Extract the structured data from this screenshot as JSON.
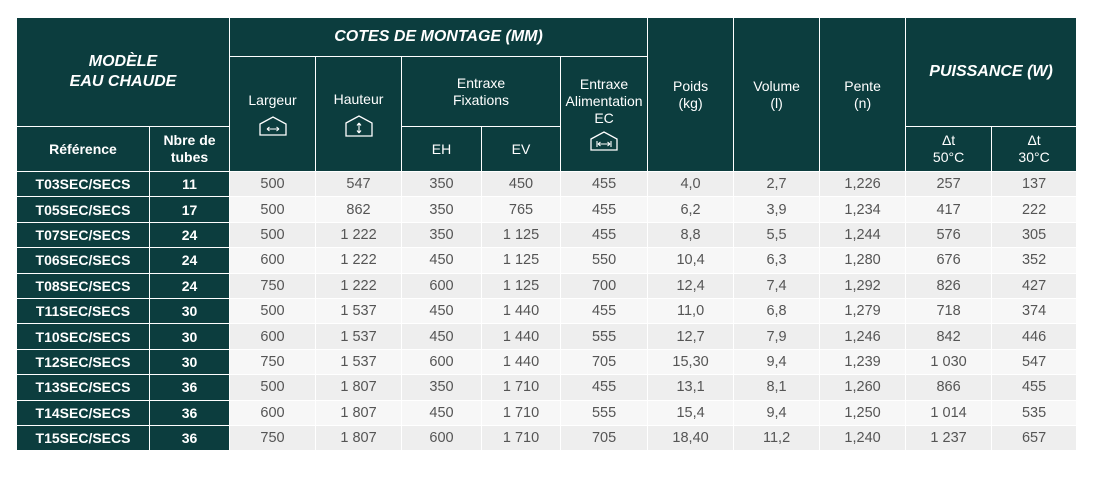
{
  "header": {
    "modele_line1": "MODÈLE",
    "modele_line2": "EAU CHAUDE",
    "cotes": "COTES DE MONTAGE (MM)",
    "largeur": "Largeur",
    "hauteur": "Hauteur",
    "entraxe_fix_line1": "Entraxe",
    "entraxe_fix_line2": "Fixations",
    "entraxe_alim_line1": "Entraxe",
    "entraxe_alim_line2": "Alimentation",
    "entraxe_alim_line3": "EC",
    "poids_line1": "Poids",
    "poids_line2": "(kg)",
    "volume_line1": "Volume",
    "volume_line2": "(l)",
    "pente_line1": "Pente",
    "pente_line2": "(n)",
    "puissance": "PUISSANCE (W)",
    "reference": "Référence",
    "tubes_line1": "Nbre de",
    "tubes_line2": "tubes",
    "eh": "EH",
    "ev": "EV",
    "dt50_line1": "Δt",
    "dt50_line2": "50°C",
    "dt30_line1": "Δt",
    "dt30_line2": "30°C"
  },
  "icons": {
    "largeur": "width-arrows-icon",
    "hauteur": "height-arrows-icon",
    "entraxe": "connection-distance-icon"
  },
  "rows": [
    {
      "ref": "T03SEC/SECS",
      "tubes": "11",
      "largeur": "500",
      "hauteur": "547",
      "eh": "350",
      "ev": "450",
      "ec": "455",
      "poids": "4,0",
      "volume": "2,7",
      "pente": "1,226",
      "p50": "257",
      "p30": "137"
    },
    {
      "ref": "T05SEC/SECS",
      "tubes": "17",
      "largeur": "500",
      "hauteur": "862",
      "eh": "350",
      "ev": "765",
      "ec": "455",
      "poids": "6,2",
      "volume": "3,9",
      "pente": "1,234",
      "p50": "417",
      "p30": "222"
    },
    {
      "ref": "T07SEC/SECS",
      "tubes": "24",
      "largeur": "500",
      "hauteur": "1 222",
      "eh": "350",
      "ev": "1 125",
      "ec": "455",
      "poids": "8,8",
      "volume": "5,5",
      "pente": "1,244",
      "p50": "576",
      "p30": "305"
    },
    {
      "ref": "T06SEC/SECS",
      "tubes": "24",
      "largeur": "600",
      "hauteur": "1 222",
      "eh": "450",
      "ev": "1 125",
      "ec": "550",
      "poids": "10,4",
      "volume": "6,3",
      "pente": "1,280",
      "p50": "676",
      "p30": "352"
    },
    {
      "ref": "T08SEC/SECS",
      "tubes": "24",
      "largeur": "750",
      "hauteur": "1 222",
      "eh": "600",
      "ev": "1 125",
      "ec": "700",
      "poids": "12,4",
      "volume": "7,4",
      "pente": "1,292",
      "p50": "826",
      "p30": "427"
    },
    {
      "ref": "T11SEC/SECS",
      "tubes": "30",
      "largeur": "500",
      "hauteur": "1 537",
      "eh": "450",
      "ev": "1 440",
      "ec": "455",
      "poids": "11,0",
      "volume": "6,8",
      "pente": "1,279",
      "p50": "718",
      "p30": "374"
    },
    {
      "ref": "T10SEC/SECS",
      "tubes": "30",
      "largeur": "600",
      "hauteur": "1 537",
      "eh": "450",
      "ev": "1 440",
      "ec": "555",
      "poids": "12,7",
      "volume": "7,9",
      "pente": "1,246",
      "p50": "842",
      "p30": "446"
    },
    {
      "ref": "T12SEC/SECS",
      "tubes": "30",
      "largeur": "750",
      "hauteur": "1 537",
      "eh": "600",
      "ev": "1 440",
      "ec": "705",
      "poids": "15,30",
      "volume": "9,4",
      "pente": "1,239",
      "p50": "1 030",
      "p30": "547"
    },
    {
      "ref": "T13SEC/SECS",
      "tubes": "36",
      "largeur": "500",
      "hauteur": "1 807",
      "eh": "350",
      "ev": "1 710",
      "ec": "455",
      "poids": "13,1",
      "volume": "8,1",
      "pente": "1,260",
      "p50": "866",
      "p30": "455"
    },
    {
      "ref": "T14SEC/SECS",
      "tubes": "36",
      "largeur": "600",
      "hauteur": "1 807",
      "eh": "450",
      "ev": "1 710",
      "ec": "555",
      "poids": "15,4",
      "volume": "9,4",
      "pente": "1,250",
      "p50": "1 014",
      "p30": "535"
    },
    {
      "ref": "T15SEC/SECS",
      "tubes": "36",
      "largeur": "750",
      "hauteur": "1 807",
      "eh": "600",
      "ev": "1 710",
      "ec": "705",
      "poids": "18,40",
      "volume": "11,2",
      "pente": "1,240",
      "p50": "1 237",
      "p30": "657"
    }
  ],
  "colors": {
    "header_bg": "#0c3d3e",
    "cell_bg": "#eeeeee",
    "cell_alt_bg": "#f7f7f7",
    "cell_text": "#555555"
  }
}
